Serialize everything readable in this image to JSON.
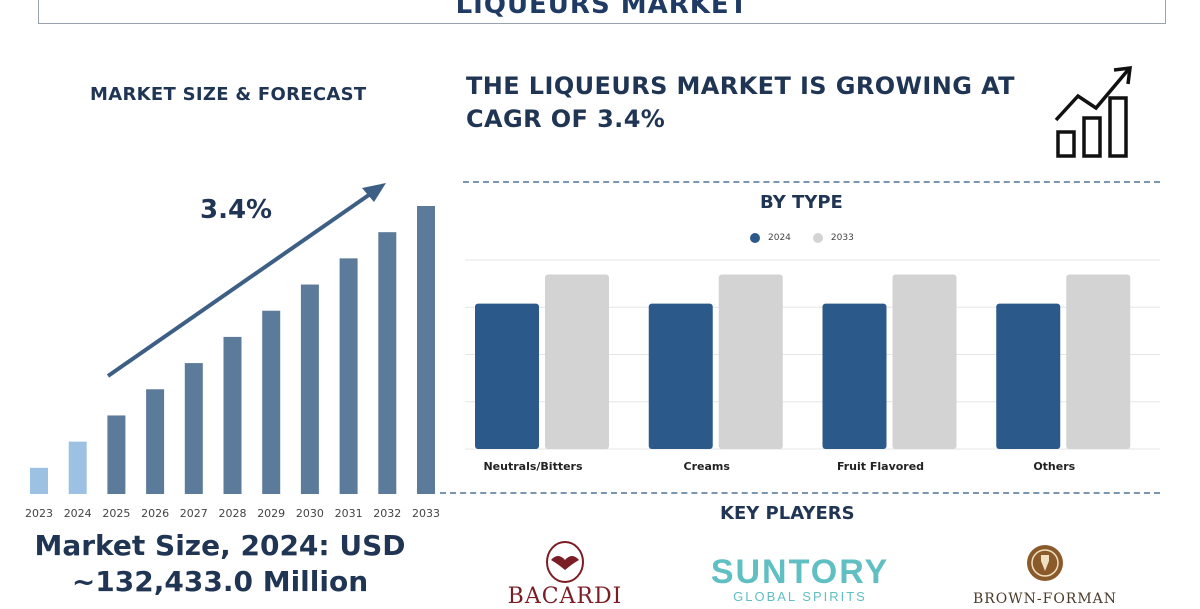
{
  "page_title": "LIQUEURS MARKET",
  "market_size_section": {
    "title": "MARKET SIZE & FORECAST",
    "cagr_label": "3.4%",
    "summary_line1": "Market Size, 2024: USD",
    "summary_line2": "~132,433.0 Million"
  },
  "cagr_headline": "THE LIQUEURS MARKET IS GROWING AT CAGR OF 3.4%",
  "by_type_section": {
    "title": "BY TYPE"
  },
  "key_players_section": {
    "title": "KEY PLAYERS",
    "logos": [
      {
        "name": "BACARDI",
        "icon": "bacardi-bat-crest-icon"
      },
      {
        "name": "SUNTORY",
        "subtitle": "GLOBAL SPIRITS",
        "icon": "suntory-logo"
      },
      {
        "name": "BROWN-FORMAN",
        "icon": "brown-forman-emblem-icon"
      }
    ]
  },
  "icons": {
    "growth": "growth-chart-icon"
  },
  "colors": {
    "title_text": "#1f3b63",
    "forecast_bar_light": "#9cc1e3",
    "forecast_bar_dark": "#5c7a99",
    "series_2024": "#2b5a8a",
    "series_2033": "#d3d3d3",
    "arrow": "#3d5f85",
    "bacardi": "#7a1d24",
    "suntory": "#5fbfc2"
  },
  "chart_data": [
    {
      "type": "bar",
      "title": "MARKET SIZE & FORECAST",
      "categories": [
        "2023",
        "2024",
        "2025",
        "2026",
        "2027",
        "2028",
        "2029",
        "2030",
        "2031",
        "2032",
        "2033"
      ],
      "values": [
        1,
        2,
        3,
        4,
        5,
        6,
        7,
        8,
        9,
        10,
        11
      ],
      "highlight_categories": [
        "2023",
        "2024"
      ],
      "annotation": "3.4%",
      "xlabel": "",
      "ylabel": "",
      "ylim": [
        0,
        11
      ],
      "grid": false,
      "y_axis_visible": false
    },
    {
      "type": "bar",
      "title": "BY TYPE",
      "categories": [
        "Neutrals/Bitters",
        "Creams",
        "Fruit Flavored",
        "Others"
      ],
      "series": [
        {
          "name": "2024",
          "values": [
            5,
            5,
            5,
            5
          ]
        },
        {
          "name": "2033",
          "values": [
            6,
            6,
            6,
            6
          ]
        }
      ],
      "legend": "top-center",
      "grid": true,
      "ylim": [
        0,
        6.5
      ],
      "y_axis_visible": false
    }
  ]
}
